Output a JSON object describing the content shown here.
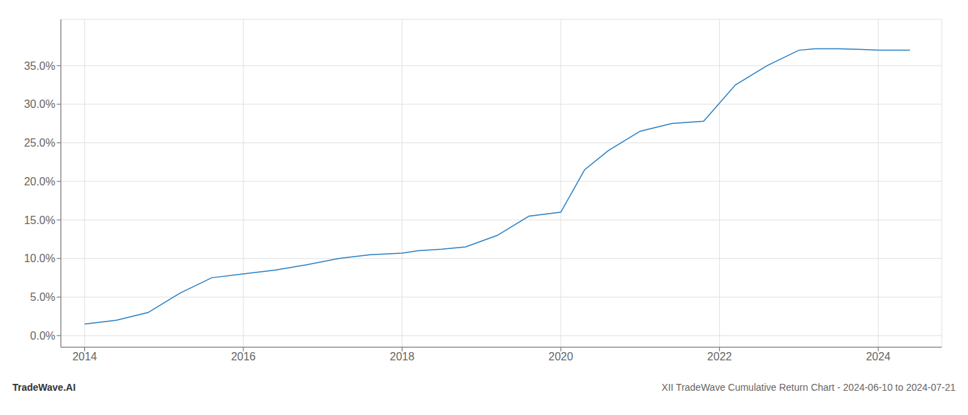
{
  "chart_data": {
    "type": "line",
    "title": "XII TradeWave Cumulative Return Chart - 2024-06-10 to 2024-07-21",
    "annotations": [
      "TradeWave.AI"
    ],
    "x": [
      2014.0,
      2014.4,
      2014.8,
      2015.2,
      2015.6,
      2016.0,
      2016.4,
      2016.8,
      2017.2,
      2017.6,
      2018.0,
      2018.2,
      2018.5,
      2018.8,
      2019.2,
      2019.6,
      2020.0,
      2020.3,
      2020.6,
      2021.0,
      2021.4,
      2021.8,
      2022.2,
      2022.6,
      2023.0,
      2023.2,
      2023.5,
      2023.8,
      2024.0,
      2024.4
    ],
    "values": [
      1.5,
      2.0,
      3.0,
      5.5,
      7.5,
      8.0,
      8.5,
      9.2,
      10.0,
      10.5,
      10.7,
      11.0,
      11.2,
      11.5,
      13.0,
      15.5,
      16.0,
      21.5,
      24.0,
      26.5,
      27.5,
      27.8,
      32.5,
      35.0,
      37.0,
      37.2,
      37.2,
      37.1,
      37.0,
      37.0
    ],
    "color": "#2a7fc1",
    "xlim": [
      2013.7,
      2024.8
    ],
    "ylim": [
      -1.5,
      41
    ],
    "xticks": [
      2014,
      2016,
      2018,
      2020,
      2022,
      2024
    ],
    "yticks": [
      {
        "value": 0,
        "label": "0.0%"
      },
      {
        "value": 5,
        "label": "5.0%"
      },
      {
        "value": 10,
        "label": "10.0%"
      },
      {
        "value": 15,
        "label": "15.0%"
      },
      {
        "value": 20,
        "label": "20.0%"
      },
      {
        "value": 25,
        "label": "25.0%"
      },
      {
        "value": 30,
        "label": "30.0%"
      },
      {
        "value": 35,
        "label": "35.0%"
      }
    ],
    "grid": true
  }
}
